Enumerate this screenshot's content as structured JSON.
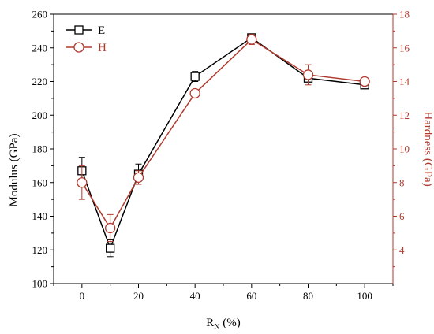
{
  "chart_data": {
    "type": "line",
    "xlabel_main": "R",
    "xlabel_sub": "N",
    "xlabel_unit": " (%)",
    "ylabel_left": "Modulus (GPa)",
    "ylabel_right": "Hardness (GPa)",
    "xlim": [
      -10,
      110
    ],
    "ylim_left": [
      100,
      260
    ],
    "ylim_right": [
      2,
      18
    ],
    "x_ticks": [
      0,
      20,
      40,
      60,
      80,
      100
    ],
    "y_left_ticks": [
      100,
      120,
      140,
      160,
      180,
      200,
      220,
      240,
      260
    ],
    "y_right_ticks": [
      4,
      6,
      8,
      10,
      12,
      14,
      16,
      18
    ],
    "x": [
      0,
      10,
      20,
      40,
      60,
      80,
      100
    ],
    "series": [
      {
        "name": "E",
        "axis": "left",
        "color": "#000000",
        "marker": "square",
        "values": [
          167,
          121,
          165,
          223,
          246,
          222,
          218
        ],
        "errors": [
          8,
          5,
          6,
          3,
          2,
          2,
          1.5
        ]
      },
      {
        "name": "H",
        "axis": "right",
        "color": "#b03a2e",
        "marker": "circle",
        "values": [
          8.0,
          5.3,
          8.3,
          13.3,
          16.5,
          14.4,
          14.0
        ],
        "errors": [
          1.0,
          0.8,
          0.4,
          0.2,
          0.3,
          0.6,
          0.2
        ]
      }
    ],
    "legend_position": "top-left"
  }
}
